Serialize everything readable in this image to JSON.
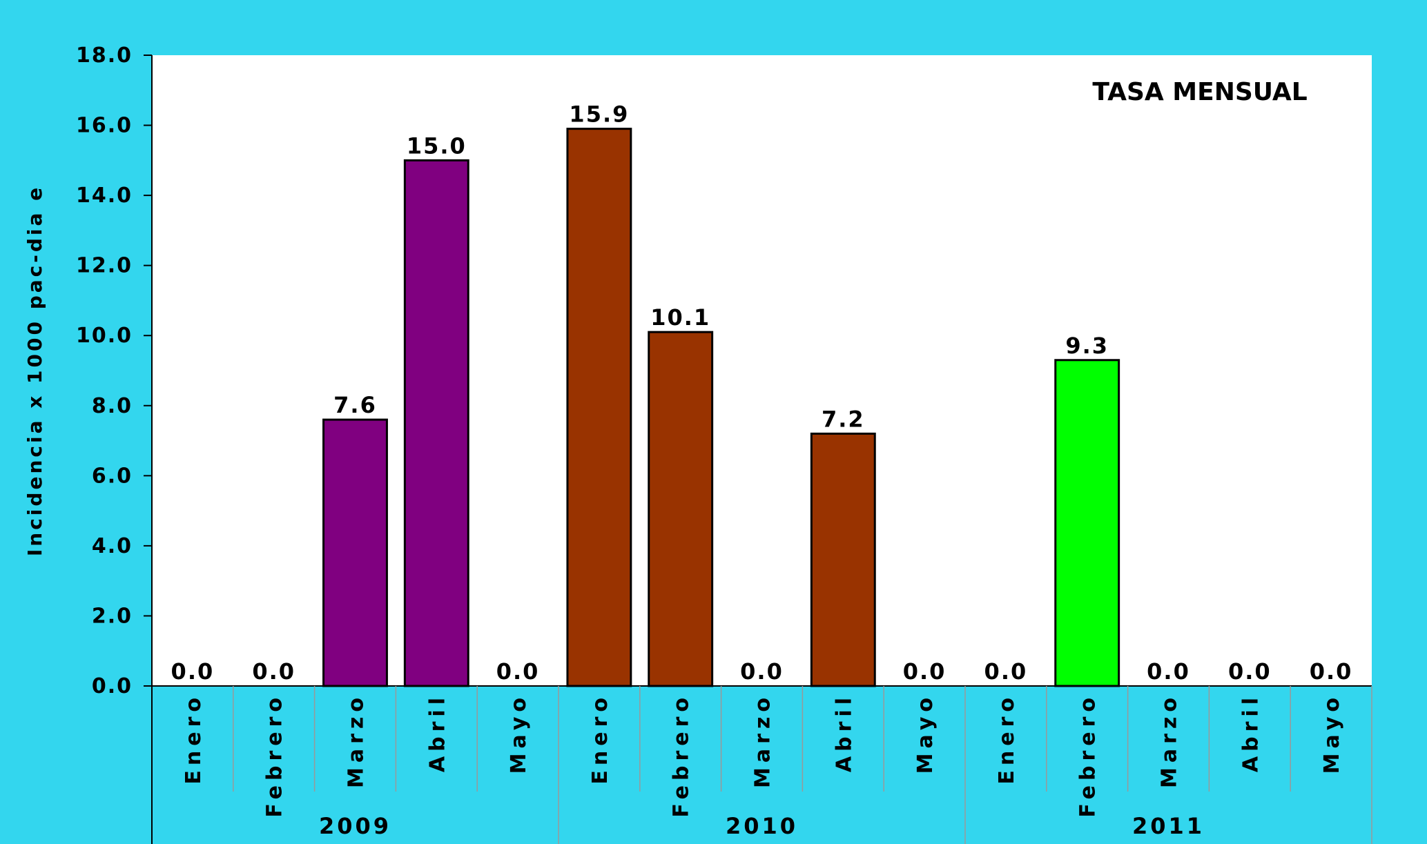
{
  "chart_data": {
    "type": "bar",
    "title": "TASA MENSUAL",
    "y_label": "Incidencia x 1000 pac-dia e",
    "categories": [
      "Enero",
      "Febrero",
      "Marzo",
      "Abril",
      "Mayo"
    ],
    "series": [
      {
        "name": "2009",
        "color": "#800080",
        "values": [
          0,
          0,
          7.6,
          15.0,
          0
        ],
        "value_labels": [
          "0.0",
          "0.0",
          "7.6",
          "15.0",
          "0.0"
        ]
      },
      {
        "name": "2010",
        "color": "#993300",
        "values": [
          15.9,
          10.1,
          0,
          7.2,
          0
        ],
        "value_labels": [
          "15.9",
          "10.1",
          "0.0",
          "7.2",
          "0.0"
        ]
      },
      {
        "name": "2011",
        "color": "#00ff00",
        "values": [
          0,
          9.3,
          0,
          0,
          0
        ],
        "value_labels": [
          "0.0",
          "9.3",
          "0.0",
          "0.0",
          "0.0"
        ]
      }
    ],
    "ylim": [
      0,
      18
    ],
    "yticks": [
      {
        "value": 0,
        "label": "0.0"
      },
      {
        "value": 2,
        "label": "2.0"
      },
      {
        "value": 4,
        "label": "4.0"
      },
      {
        "value": 6,
        "label": "6.0"
      },
      {
        "value": 8,
        "label": "8.0"
      },
      {
        "value": 10,
        "label": "10.0"
      },
      {
        "value": 12,
        "label": "12.0"
      },
      {
        "value": 14,
        "label": "14.0"
      },
      {
        "value": 16,
        "label": "16.0"
      },
      {
        "value": 18,
        "label": "18.0"
      }
    ]
  }
}
